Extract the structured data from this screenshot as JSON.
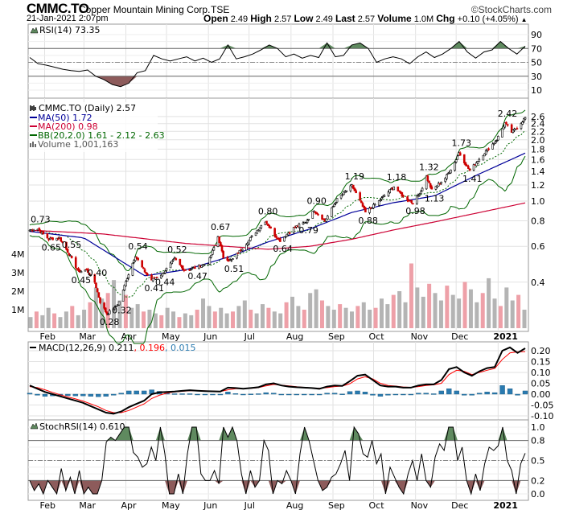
{
  "header": {
    "symbol": "CMMC.TO",
    "company": "Copper Mountain Mining Corp.",
    "exchange": "TSE",
    "brand": "©StockCharts.com",
    "datetime": "21-Jan-2021 2:07pm",
    "open_label": "Open",
    "open": "2.49",
    "high_label": "High",
    "high": "2.57",
    "low_label": "Low",
    "low": "2.49",
    "last_label": "Last",
    "last": "2.57",
    "volume_label": "Volume",
    "volume": "1.0M",
    "chg_label": "Chg",
    "chg": "+0.10 (+4.05%)",
    "chg_icon": "up-triangle"
  },
  "colors": {
    "up": "#000000",
    "down": "#cc0000",
    "ma50": "#000099",
    "ma200": "#cc0033",
    "bb": "#006600",
    "vol_up": "#b4b4b4",
    "vol_down": "#eea0a8",
    "overbought": "#5f8a5f",
    "oversold": "#8d5b5b",
    "macd_hist": "#2a7ab0",
    "signal": "#ff0000"
  },
  "chart_data": [
    {
      "type": "line",
      "title": "RSI(14) 73.35",
      "legend": "RSI(14) 73.35",
      "ylim": [
        0,
        100
      ],
      "yticks": [
        "90",
        "70",
        "50",
        "30",
        "10"
      ],
      "levels": [
        70,
        50,
        30
      ],
      "values": [
        57,
        48,
        46,
        43,
        40,
        38,
        37,
        39,
        30,
        25,
        18,
        15,
        20,
        35,
        38,
        60,
        55,
        52,
        55,
        58,
        52,
        56,
        50,
        55,
        75,
        55,
        58,
        62,
        68,
        75,
        70,
        58,
        62,
        56,
        60,
        57,
        78,
        58,
        60,
        75,
        78,
        70,
        50,
        55,
        58,
        55,
        48,
        58,
        65,
        57,
        62,
        70,
        80,
        65,
        56,
        65,
        68,
        80,
        70,
        62,
        73.35
      ]
    },
    {
      "type": "candlestick",
      "legend": {
        "price": "CMMC.TO (Daily) 2.57",
        "ma50": "MA(50) 1.72",
        "ma200": "MA(200) 0.98",
        "bb": "BB(20,2.0) 1.61 - 2.12 - 2.63",
        "volume": "Volume 1,001,163"
      },
      "yscale": "log",
      "ylim": [
        0.26,
        2.75
      ],
      "yticks": [
        "2.6",
        "2.4",
        "2.2",
        "2.0",
        "1.8",
        "1.6",
        "1.4",
        "1.2",
        "1.0",
        "0.8",
        "0.6",
        "0.4"
      ],
      "volume_ticks": [
        "4M",
        "3M",
        "2M",
        "1M"
      ],
      "xlim": [
        "2020-01-21",
        "2021-01-21"
      ],
      "close_anchors": [
        [
          "2020-01-21",
          0.72
        ],
        [
          "2020-01-27",
          0.73
        ],
        [
          "2020-02-04",
          0.65
        ],
        [
          "2020-02-12",
          0.66
        ],
        [
          "2020-02-19",
          0.55
        ],
        [
          "2020-02-26",
          0.45
        ],
        [
          "2020-03-03",
          0.46
        ],
        [
          "2020-03-09",
          0.4
        ],
        [
          "2020-03-13",
          0.32
        ],
        [
          "2020-03-18",
          0.28
        ],
        [
          "2020-03-24",
          0.3
        ],
        [
          "2020-03-27",
          0.32
        ],
        [
          "2020-04-02",
          0.42
        ],
        [
          "2020-04-08",
          0.54
        ],
        [
          "2020-04-14",
          0.46
        ],
        [
          "2020-04-20",
          0.41
        ],
        [
          "2020-04-28",
          0.44
        ],
        [
          "2020-05-07",
          0.52
        ],
        [
          "2020-05-14",
          0.46
        ],
        [
          "2020-05-22",
          0.47
        ],
        [
          "2020-06-01",
          0.5
        ],
        [
          "2020-06-08",
          0.67
        ],
        [
          "2020-06-12",
          0.53
        ],
        [
          "2020-06-18",
          0.51
        ],
        [
          "2020-06-29",
          0.62
        ],
        [
          "2020-07-07",
          0.72
        ],
        [
          "2020-07-13",
          0.8
        ],
        [
          "2020-07-20",
          0.68
        ],
        [
          "2020-07-24",
          0.64
        ],
        [
          "2020-08-03",
          0.74
        ],
        [
          "2020-08-12",
          0.79
        ],
        [
          "2020-08-18",
          0.9
        ],
        [
          "2020-08-26",
          0.8
        ],
        [
          "2020-09-04",
          1.02
        ],
        [
          "2020-09-15",
          1.19
        ],
        [
          "2020-09-21",
          1.0
        ],
        [
          "2020-09-25",
          0.88
        ],
        [
          "2020-10-05",
          1.0
        ],
        [
          "2020-10-16",
          1.18
        ],
        [
          "2020-10-23",
          1.05
        ],
        [
          "2020-10-30",
          0.98
        ],
        [
          "2020-11-05",
          1.12
        ],
        [
          "2020-11-09",
          1.32
        ],
        [
          "2020-11-13",
          1.13
        ],
        [
          "2020-11-23",
          1.3
        ],
        [
          "2020-11-30",
          1.55
        ],
        [
          "2020-12-03",
          1.73
        ],
        [
          "2020-12-08",
          1.52
        ],
        [
          "2020-12-11",
          1.41
        ],
        [
          "2020-12-21",
          1.7
        ],
        [
          "2020-12-31",
          2.0
        ],
        [
          "2021-01-06",
          2.42
        ],
        [
          "2021-01-11",
          2.18
        ],
        [
          "2021-01-15",
          2.3
        ],
        [
          "2021-01-19",
          2.47
        ],
        [
          "2021-01-21",
          2.57
        ]
      ],
      "annotations": [
        [
          "2020-01-27",
          0.73,
          "above"
        ],
        [
          "2020-02-04",
          0.65,
          "below"
        ],
        [
          "2020-02-19",
          0.55,
          "above"
        ],
        [
          "2020-02-26",
          0.45,
          "below"
        ],
        [
          "2020-03-09",
          0.4,
          "above"
        ],
        [
          "2020-03-18",
          0.28,
          "below"
        ],
        [
          "2020-03-27",
          0.32,
          "below"
        ],
        [
          "2020-04-08",
          0.54,
          "above"
        ],
        [
          "2020-04-20",
          0.41,
          "below"
        ],
        [
          "2020-05-07",
          0.52,
          "above"
        ],
        [
          "2020-04-28",
          0.44,
          "below"
        ],
        [
          "2020-05-22",
          0.47,
          "below"
        ],
        [
          "2020-06-08",
          0.67,
          "above"
        ],
        [
          "2020-06-18",
          0.51,
          "below"
        ],
        [
          "2020-07-13",
          0.8,
          "above"
        ],
        [
          "2020-07-24",
          0.64,
          "below"
        ],
        [
          "2020-08-12",
          0.79,
          "below"
        ],
        [
          "2020-08-18",
          0.9,
          "above"
        ],
        [
          "2020-09-15",
          1.19,
          "above"
        ],
        [
          "2020-09-25",
          0.88,
          "below"
        ],
        [
          "2020-10-16",
          1.18,
          "above"
        ],
        [
          "2020-10-30",
          0.98,
          "below"
        ],
        [
          "2020-11-09",
          1.32,
          "above"
        ],
        [
          "2020-11-13",
          1.13,
          "below"
        ],
        [
          "2020-12-03",
          1.73,
          "above"
        ],
        [
          "2020-12-11",
          1.41,
          "below"
        ],
        [
          "2021-01-06",
          2.42,
          "above"
        ]
      ],
      "ma50_anchors": [
        [
          "2020-01-21",
          0.71
        ],
        [
          "2020-03-01",
          0.66
        ],
        [
          "2020-04-15",
          0.43
        ],
        [
          "2020-05-15",
          0.46
        ],
        [
          "2020-06-15",
          0.53
        ],
        [
          "2020-07-15",
          0.63
        ],
        [
          "2020-08-15",
          0.73
        ],
        [
          "2020-09-15",
          0.88
        ],
        [
          "2020-10-15",
          0.98
        ],
        [
          "2020-11-15",
          1.06
        ],
        [
          "2020-12-15",
          1.33
        ],
        [
          "2021-01-21",
          1.72
        ]
      ],
      "ma200_anchors": [
        [
          "2020-01-21",
          0.72
        ],
        [
          "2020-03-15",
          0.69
        ],
        [
          "2020-05-15",
          0.62
        ],
        [
          "2020-07-15",
          0.58
        ],
        [
          "2020-08-15",
          0.6
        ],
        [
          "2020-09-15",
          0.65
        ],
        [
          "2020-10-15",
          0.72
        ],
        [
          "2020-11-15",
          0.79
        ],
        [
          "2020-12-15",
          0.87
        ],
        [
          "2021-01-21",
          0.98
        ]
      ],
      "volume_millions": [
        0.6,
        0.9,
        0.7,
        1.1,
        0.8,
        0.6,
        0.9,
        1.2,
        0.7,
        1.0,
        1.4,
        2.2,
        1.6,
        1.9,
        2.6,
        1.5,
        1.8,
        1.1,
        1.3,
        0.9,
        1.0,
        0.8,
        0.7,
        1.1,
        0.9,
        0.6,
        0.8,
        0.7,
        1.0,
        1.6,
        1.2,
        0.9,
        1.1,
        0.8,
        0.9,
        1.2,
        1.5,
        1.0,
        0.8,
        1.3,
        1.1,
        0.9,
        0.8,
        1.4,
        1.7,
        1.2,
        1.0,
        1.9,
        2.1,
        1.5,
        1.2,
        1.0,
        1.3,
        1.1,
        0.9,
        1.2,
        1.4,
        1.0,
        1.1,
        1.6,
        1.3,
        1.8,
        2.0,
        1.4,
        3.5,
        2.2,
        1.7,
        2.4,
        1.9,
        1.5,
        2.3,
        1.8,
        1.6,
        2.5,
        2.1,
        1.4,
        1.9,
        2.7,
        1.6,
        1.2,
        2.2,
        1.5,
        1.8,
        1.0
      ]
    },
    {
      "type": "line",
      "title": "MACD",
      "legend": {
        "macd": "MACD(12,26,9) 0.211",
        "signal": ", 0.196",
        "hist": ", 0.015"
      },
      "ylim": [
        -0.115,
        0.235
      ],
      "yticks": [
        "0.20",
        "0.15",
        "0.10",
        "0.05",
        "0.00",
        "-0.05",
        "-0.10"
      ],
      "macd": [
        0.04,
        0.025,
        0.01,
        0.0,
        -0.01,
        -0.02,
        -0.03,
        -0.04,
        -0.055,
        -0.07,
        -0.085,
        -0.09,
        -0.08,
        -0.06,
        -0.045,
        -0.03,
        0.0,
        0.008,
        0.01,
        0.012,
        0.015,
        0.018,
        0.016,
        0.014,
        0.013,
        0.012,
        0.03,
        0.028,
        0.025,
        0.028,
        0.032,
        0.045,
        0.05,
        0.04,
        0.035,
        0.032,
        0.03,
        0.028,
        0.025,
        0.035,
        0.04,
        0.038,
        0.06,
        0.085,
        0.09,
        0.065,
        0.04,
        0.035,
        0.035,
        0.03,
        0.03,
        0.04,
        0.045,
        0.045,
        0.065,
        0.115,
        0.125,
        0.1,
        0.085,
        0.105,
        0.12,
        0.125,
        0.2,
        0.215,
        0.19,
        0.211
      ],
      "signal": [
        0.035,
        0.03,
        0.02,
        0.008,
        -0.003,
        -0.013,
        -0.022,
        -0.032,
        -0.045,
        -0.058,
        -0.075,
        -0.085,
        -0.085,
        -0.075,
        -0.06,
        -0.045,
        -0.02,
        -0.005,
        0.005,
        0.01,
        0.013,
        0.016,
        0.016,
        0.015,
        0.014,
        0.012,
        0.02,
        0.025,
        0.026,
        0.027,
        0.03,
        0.038,
        0.045,
        0.042,
        0.038,
        0.034,
        0.031,
        0.029,
        0.027,
        0.03,
        0.035,
        0.037,
        0.048,
        0.07,
        0.08,
        0.07,
        0.05,
        0.04,
        0.037,
        0.033,
        0.031,
        0.035,
        0.04,
        0.043,
        0.05,
        0.09,
        0.11,
        0.105,
        0.09,
        0.1,
        0.11,
        0.118,
        0.16,
        0.19,
        0.195,
        0.196
      ]
    },
    {
      "type": "line",
      "title": "StochRSI(14) 0.610",
      "legend": "StochRSI(14) 0.610",
      "ylim": [
        -0.04,
        1.04
      ],
      "yticks": [
        "1.0",
        "0.8",
        "0.5",
        "0.2",
        "0.0"
      ],
      "levels": [
        0.8,
        0.5,
        0.2
      ],
      "values": [
        0.2,
        0.05,
        0.15,
        0.0,
        0.2,
        0.1,
        0.0,
        0.38,
        0.05,
        0.25,
        0.0,
        0.35,
        0.0,
        0.1,
        0.0,
        0.0,
        0.2,
        0.78,
        0.85,
        0.8,
        0.9,
        1.0,
        1.0,
        0.62,
        0.55,
        0.4,
        0.45,
        0.7,
        0.5,
        1.0,
        0.6,
        0.0,
        0.0,
        0.3,
        0.0,
        0.6,
        1.0,
        1.0,
        0.3,
        0.2,
        0.2,
        0.35,
        0.15,
        1.0,
        0.85,
        1.0,
        0.8,
        0.3,
        0.0,
        0.35,
        0.1,
        0.2,
        0.8,
        0.65,
        0.0,
        0.2,
        0.15,
        0.35,
        0.2,
        0.0,
        0.6,
        1.0,
        0.8,
        0.5,
        0.2,
        0.05,
        0.1,
        0.25,
        0.3,
        0.45,
        0.65,
        0.2,
        1.0,
        0.9,
        0.6,
        0.55,
        0.8,
        0.45,
        0.6,
        0.0,
        0.4,
        0.25,
        0.1,
        0.0,
        0.3,
        0.5,
        0.2,
        0.6,
        0.2,
        0.1,
        0.55,
        0.75,
        0.65,
        1.0,
        1.0,
        0.5,
        0.7,
        0.2,
        0.0,
        0.3,
        0.05,
        0.45,
        0.7,
        0.65,
        0.72,
        1.0,
        0.5,
        0.35,
        0.0,
        0.45,
        0.61
      ]
    }
  ],
  "x_axis": {
    "labels": [
      [
        "2020-02-01",
        "Feb"
      ],
      [
        "2020-03-01",
        "Mar"
      ],
      [
        "2020-04-01",
        "Apr"
      ],
      [
        "2020-05-01",
        "May"
      ],
      [
        "2020-06-01",
        "Jun"
      ],
      [
        "2020-07-01",
        "Jul"
      ],
      [
        "2020-08-01",
        "Aug"
      ],
      [
        "2020-09-01",
        "Sep"
      ],
      [
        "2020-10-01",
        "Oct"
      ],
      [
        "2020-11-01",
        "Nov"
      ],
      [
        "2020-12-01",
        "Dec"
      ],
      [
        "2021-01-01",
        "2021"
      ]
    ]
  }
}
